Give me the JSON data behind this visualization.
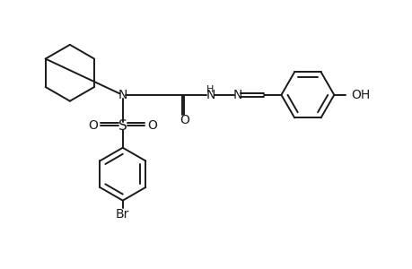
{
  "bg_color": "#ffffff",
  "line_color": "#1a1a1a",
  "line_width": 1.4,
  "font_size": 9,
  "fig_width": 4.6,
  "fig_height": 3.0,
  "dpi": 100,
  "xlim": [
    0,
    46
  ],
  "ylim": [
    0,
    30
  ]
}
